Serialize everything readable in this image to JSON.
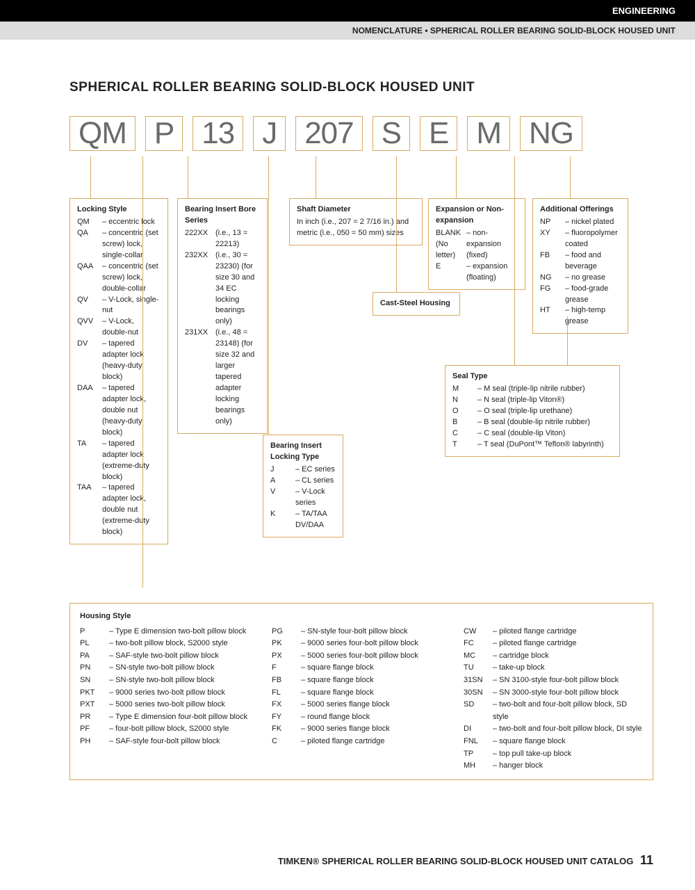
{
  "header": {
    "section": "ENGINEERING",
    "breadcrumb": "NOMENCLATURE • SPHERICAL ROLLER BEARING SOLID-BLOCK HOUSED UNIT"
  },
  "title": "SPHERICAL ROLLER BEARING SOLID-BLOCK HOUSED UNIT",
  "code_parts": [
    "QM",
    "P",
    "13",
    "J",
    "207",
    "S",
    "E",
    "M",
    "NG"
  ],
  "locking_style": {
    "title": "Locking Style",
    "items": [
      {
        "c": "QM",
        "d": "– eccentric lock"
      },
      {
        "c": "QA",
        "d": "– concentric (set screw) lock, single-collar"
      },
      {
        "c": "QAA",
        "d": "– concentric (set screw) lock, double-collar"
      },
      {
        "c": "QV",
        "d": "– V-Lock, single-nut"
      },
      {
        "c": "QVV",
        "d": "– V-Lock, double-nut"
      },
      {
        "c": "DV",
        "d": "– tapered adapter lock (heavy-duty block)"
      },
      {
        "c": "DAA",
        "d": "– tapered adapter lock, double nut (heavy-duty block)"
      },
      {
        "c": "TA",
        "d": "– tapered adapter lock (extreme-duty block)"
      },
      {
        "c": "TAA",
        "d": "– tapered adapter lock, double nut (extreme-duty block)"
      }
    ]
  },
  "bore_series": {
    "title": "Bearing Insert Bore Series",
    "items": [
      {
        "c": "222XX",
        "d": "(i.e., 13 = 22213)"
      },
      {
        "c": "232XX",
        "d": "(i.e., 30 = 23230) (for size 30 and 34 EC locking bearings only)"
      },
      {
        "c": "231XX",
        "d": "(i.e., 48 = 23148) (for size 32 and larger tapered adapter locking bearings only)"
      }
    ]
  },
  "locking_type": {
    "title": "Bearing Insert Locking Type",
    "items": [
      {
        "c": "J",
        "d": "– EC series"
      },
      {
        "c": "A",
        "d": "– CL series"
      },
      {
        "c": "V",
        "d": "– V-Lock series"
      },
      {
        "c": "K",
        "d": "– TA/TAA DV/DAA"
      }
    ]
  },
  "shaft_diameter": {
    "title": "Shaft Diameter",
    "text": "In inch (i.e., 207 = 2 7/16 in.) and metric (i.e., 050 = 50 mm) sizes"
  },
  "cast_steel": "Cast-Steel Housing",
  "expansion": {
    "title": "Expansion or Non-expansion",
    "items": [
      {
        "c": "BLANK (No letter)",
        "d": "– non-expansion (fixed)"
      },
      {
        "c": "E",
        "d": "– expansion (floating)"
      }
    ]
  },
  "seal_type": {
    "title": "Seal Type",
    "items": [
      {
        "c": "M",
        "d": "– M seal (triple-lip nitrile rubber)"
      },
      {
        "c": "N",
        "d": "– N seal (triple-lip Viton®)"
      },
      {
        "c": "O",
        "d": "– O seal (triple-lip urethane)"
      },
      {
        "c": "B",
        "d": "– B seal (double-lip nitrile rubber)"
      },
      {
        "c": "C",
        "d": "– C seal (double-lip Viton)"
      },
      {
        "c": "T",
        "d": "– T seal (DuPont™ Teflon® labyrinth)"
      }
    ]
  },
  "additional": {
    "title": "Additional Offerings",
    "items": [
      {
        "c": "NP",
        "d": "– nickel plated"
      },
      {
        "c": "XY",
        "d": "– fluoropolymer coated"
      },
      {
        "c": "FB",
        "d": "– food and beverage"
      },
      {
        "c": "NG",
        "d": "– no grease"
      },
      {
        "c": "FG",
        "d": "– food-grade grease"
      },
      {
        "c": "HT",
        "d": "– high-temp grease"
      }
    ]
  },
  "housing": {
    "title": "Housing Style",
    "cols": [
      [
        {
          "c": "P",
          "d": "– Type E dimension two-bolt pillow block"
        },
        {
          "c": "PL",
          "d": "– two-bolt pillow block, S2000 style"
        },
        {
          "c": "PA",
          "d": "– SAF-style two-bolt pillow block"
        },
        {
          "c": "PN",
          "d": "– SN-style two-bolt pillow block"
        },
        {
          "c": "SN",
          "d": "– SN-style two-bolt pillow block"
        },
        {
          "c": "PKT",
          "d": "– 9000 series two-bolt pillow block"
        },
        {
          "c": "PXT",
          "d": "– 5000 series two-bolt pillow block"
        },
        {
          "c": "PR",
          "d": "– Type E dimension four-bolt pillow block"
        },
        {
          "c": "PF",
          "d": "– four-bolt pillow block, S2000 style"
        },
        {
          "c": "PH",
          "d": "– SAF-style four-bolt pillow block"
        }
      ],
      [
        {
          "c": "PG",
          "d": "– SN-style four-bolt pillow block"
        },
        {
          "c": "PK",
          "d": "– 9000 series four-bolt pillow block"
        },
        {
          "c": "PX",
          "d": "– 5000 series four-bolt pillow block"
        },
        {
          "c": "F",
          "d": "– square flange block"
        },
        {
          "c": "FB",
          "d": "– square flange block"
        },
        {
          "c": "FL",
          "d": "– square flange block"
        },
        {
          "c": "FX",
          "d": "– 5000 series flange block"
        },
        {
          "c": "FY",
          "d": "– round flange block"
        },
        {
          "c": "FK",
          "d": "– 9000 series flange block"
        },
        {
          "c": "C",
          "d": "– piloted flange cartridge"
        }
      ],
      [
        {
          "c": "CW",
          "d": "– piloted flange cartridge"
        },
        {
          "c": "FC",
          "d": "– piloted flange cartridge"
        },
        {
          "c": "MC",
          "d": "– cartridge block"
        },
        {
          "c": "TU",
          "d": "– take-up block"
        },
        {
          "c": "31SN",
          "d": "– SN 3100-style four-bolt pillow block"
        },
        {
          "c": "30SN",
          "d": "– SN 3000-style four-bolt pillow block"
        },
        {
          "c": "SD",
          "d": "– two-bolt and four-bolt pillow block, SD style"
        },
        {
          "c": "DI",
          "d": "– two-bolt and four-bolt pillow block, DI style"
        },
        {
          "c": "FNL",
          "d": "– square flange block"
        },
        {
          "c": "TP",
          "d": "– top pull take-up block"
        },
        {
          "c": "MH",
          "d": "– hanger block"
        }
      ]
    ]
  },
  "footer": {
    "text": "TIMKEN® SPHERICAL ROLLER BEARING SOLID-BLOCK HOUSED UNIT CATALOG",
    "page": "11"
  }
}
